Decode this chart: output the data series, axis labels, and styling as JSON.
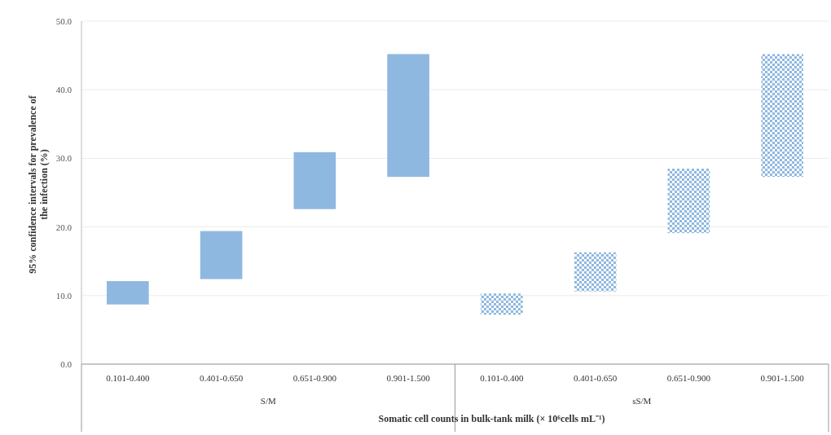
{
  "chart_data": {
    "type": "bar",
    "xlabel": "Somatic cell counts in bulk-tank milk  (× 10⁶cells mL⁻¹)",
    "ylabel": "95% confidence intervals for prevalence of the infection (%)",
    "categories": [
      "0.101-0.400",
      "0.401-0.650",
      "0.651-0.900",
      "0.901-1.500",
      "0.101-0.400",
      "0.401-0.650",
      "0.651-0.900",
      "0.901-1.500"
    ],
    "series": [
      {
        "color": "#8fb8e0",
        "base": [
          8.7,
          12.4,
          22.6,
          27.3,
          null,
          null,
          null,
          null
        ],
        "values": [
          3.4,
          7.0,
          8.3,
          17.9,
          null,
          null,
          null,
          null
        ]
      },
      {
        "color": "#8fb8e0",
        "base": [
          null,
          null,
          null,
          null,
          7.2,
          10.6,
          19.1,
          27.3
        ],
        "values": [
          null,
          null,
          null,
          null,
          3.1,
          5.7,
          9.4,
          17.9
        ]
      }
    ],
    "ylim": [
      0,
      50
    ],
    "yticks": [
      {
        "value": 0,
        "label": "0.0"
      },
      {
        "value": 10,
        "label": "10.0"
      },
      {
        "value": 20,
        "label": "20.0"
      },
      {
        "value": 30,
        "label": "30.0"
      },
      {
        "value": 40,
        "label": "40.0"
      },
      {
        "value": 50,
        "label": "50.0"
      }
    ],
    "grid": "y",
    "annotations": [
      "S/M",
      "sS/M"
    ]
  }
}
